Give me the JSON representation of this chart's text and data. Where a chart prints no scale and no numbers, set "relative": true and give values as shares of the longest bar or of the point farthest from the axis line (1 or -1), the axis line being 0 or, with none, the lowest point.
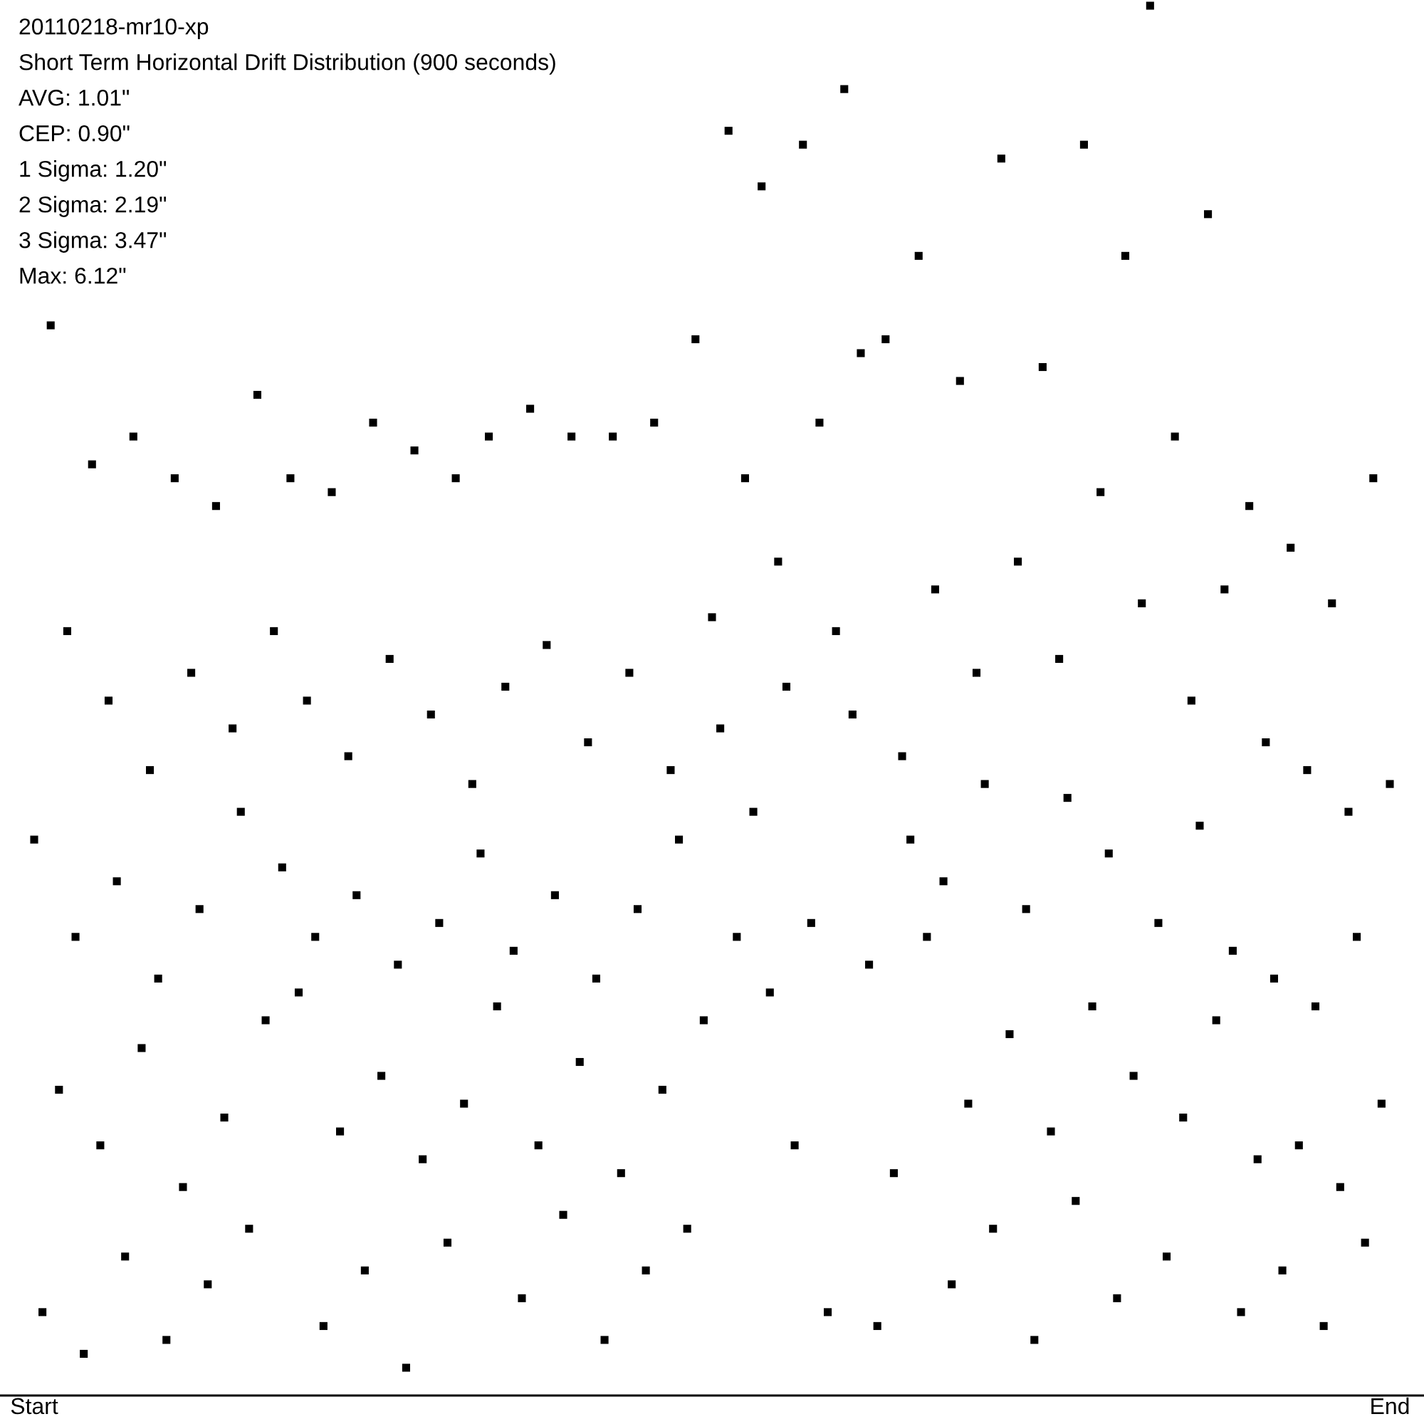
{
  "chart_data": {
    "type": "scatter",
    "title": "20110218-mr10-xp",
    "subtitle": "Short Term Horizontal Drift Distribution (900 seconds)",
    "annotations": [
      "AVG: 1.01\"",
      "CEP: 0.90\"",
      "1 Sigma: 1.20\"",
      "2 Sigma: 2.19\"",
      "3 Sigma: 3.47\"",
      "Max: 6.12\""
    ],
    "relative": true,
    "marker": "square",
    "color": "#000000",
    "tick_labels": "x",
    "categories": [
      "Start",
      null,
      null,
      null,
      null,
      null,
      null,
      null,
      null,
      null,
      null,
      null,
      null,
      null,
      null,
      null,
      null,
      null,
      null,
      null,
      null,
      null,
      null,
      null,
      null,
      null,
      null,
      null,
      null,
      null,
      null,
      null,
      null,
      null,
      null,
      null,
      null,
      null,
      null,
      null,
      null,
      null,
      null,
      null,
      null,
      null,
      null,
      null,
      null,
      null,
      null,
      null,
      null,
      null,
      null,
      null,
      null,
      null,
      null,
      null,
      null,
      null,
      null,
      null,
      null,
      null,
      null,
      null,
      null,
      null,
      null,
      null,
      null,
      null,
      null,
      null,
      null,
      null,
      null,
      null,
      null,
      null,
      null,
      null,
      null,
      null,
      null,
      null,
      null,
      null,
      null,
      null,
      null,
      null,
      null,
      null,
      null,
      null,
      null,
      null,
      null,
      null,
      null,
      null,
      null,
      null,
      null,
      null,
      null,
      null,
      null,
      null,
      null,
      null,
      null,
      null,
      null,
      null,
      null,
      null,
      null,
      null,
      null,
      null,
      null,
      null,
      null,
      null,
      null,
      null,
      null,
      null,
      null,
      null,
      null,
      null,
      null,
      null,
      null,
      null,
      null,
      null,
      null,
      null,
      null,
      null,
      null,
      null,
      null,
      null,
      null,
      null,
      null,
      null,
      null,
      null,
      null,
      null,
      null,
      null,
      null,
      null,
      null,
      null,
      "End"
    ],
    "values": [
      0.4,
      0.06,
      0.77,
      0.22,
      0.55,
      0.33,
      0.03,
      0.67,
      0.18,
      0.5,
      0.37,
      0.1,
      0.69,
      0.25,
      0.45,
      0.3,
      0.04,
      0.66,
      0.15,
      0.52,
      0.35,
      0.08,
      0.64,
      0.2,
      0.48,
      0.42,
      0.12,
      0.72,
      0.27,
      0.55,
      0.38,
      0.66,
      0.29,
      0.5,
      0.33,
      0.05,
      0.65,
      0.19,
      0.46,
      0.36,
      0.09,
      0.7,
      0.23,
      0.53,
      0.31,
      0.02,
      0.68,
      0.17,
      0.49,
      0.34,
      0.11,
      0.66,
      0.21,
      0.44,
      0.39,
      0.69,
      0.28,
      0.51,
      0.32,
      0.07,
      0.71,
      0.18,
      0.54,
      0.36,
      0.13,
      0.69,
      0.24,
      0.47,
      0.3,
      0.04,
      0.69,
      0.16,
      0.52,
      0.35,
      0.09,
      0.7,
      0.22,
      0.45,
      0.4,
      0.12,
      0.76,
      0.27,
      0.56,
      0.48,
      0.91,
      0.33,
      0.66,
      0.42,
      0.87,
      0.29,
      0.6,
      0.51,
      0.18,
      0.9,
      0.34,
      0.7,
      0.06,
      0.55,
      0.94,
      0.49,
      0.75,
      0.31,
      0.05,
      0.76,
      0.16,
      0.46,
      0.4,
      0.82,
      0.33,
      0.58,
      0.37,
      0.08,
      0.73,
      0.21,
      0.52,
      0.44,
      0.12,
      0.89,
      0.26,
      0.6,
      0.35,
      0.04,
      0.74,
      0.19,
      0.53,
      0.43,
      0.14,
      0.9,
      0.28,
      0.65,
      0.39,
      0.07,
      0.82,
      0.23,
      0.57,
      1.0,
      0.34,
      0.1,
      0.69,
      0.2,
      0.5,
      0.41,
      0.85,
      0.27,
      0.58,
      0.32,
      0.06,
      0.64,
      0.17,
      0.47,
      0.3,
      0.09,
      0.61,
      0.18,
      0.45,
      0.28,
      0.05,
      0.57,
      0.15,
      0.42,
      0.33,
      0.11,
      0.66,
      0.21,
      0.44
    ]
  }
}
